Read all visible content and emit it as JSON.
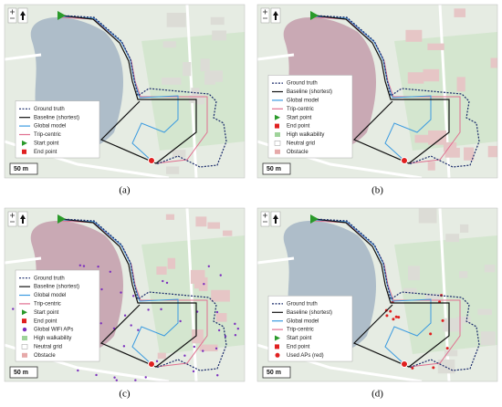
{
  "panels": [
    {
      "caption": "(a)",
      "scale": "50 m",
      "legend": [
        "Ground truth",
        "Baseline (shortest)",
        "Global model",
        "Trip-centric",
        "Start point",
        "End point"
      ]
    },
    {
      "caption": "(b)",
      "scale": "50 m",
      "legend": [
        "Ground truth",
        "Baseline (shortest)",
        "Global model",
        "Trip-centric",
        "Start point",
        "End point",
        "High walkability",
        "Neutral grid",
        "Obstacle"
      ]
    },
    {
      "caption": "(c)",
      "scale": "50 m",
      "legend": [
        "Ground truth",
        "Baseline (shortest)",
        "Global model",
        "Trip-centric",
        "Start point",
        "End point",
        "Global WiFi APs",
        "High walkability",
        "Neutral grid",
        "Obstacle"
      ]
    },
    {
      "caption": "(d)",
      "scale": "50 m",
      "legend": [
        "Ground truth",
        "Baseline (shortest)",
        "Global model",
        "Trip-centric",
        "Start point",
        "End point",
        "Used APs (red)"
      ]
    }
  ]
}
